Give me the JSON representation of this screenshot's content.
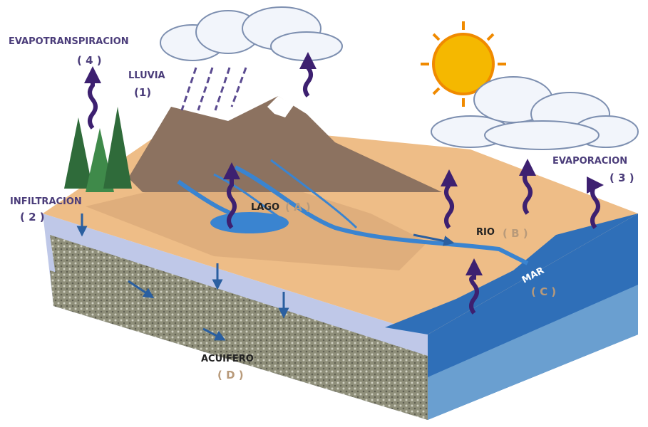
{
  "labels": [
    {
      "name": "EVAPOTRANSPIRACION",
      "code": "( 4 )"
    },
    {
      "name": "LLUVIA",
      "code": "(1)"
    },
    {
      "name": "INFILTRACION",
      "code": "( 2 )"
    },
    {
      "name": "LAGO",
      "code": "( A )"
    },
    {
      "name": "RIO",
      "code": "( B )"
    },
    {
      "name": "MAR",
      "code": "( C )"
    },
    {
      "name": "EVAPORACION",
      "code": "( 3 )"
    },
    {
      "name": "ACUIFERO",
      "code": "( D )"
    }
  ]
}
